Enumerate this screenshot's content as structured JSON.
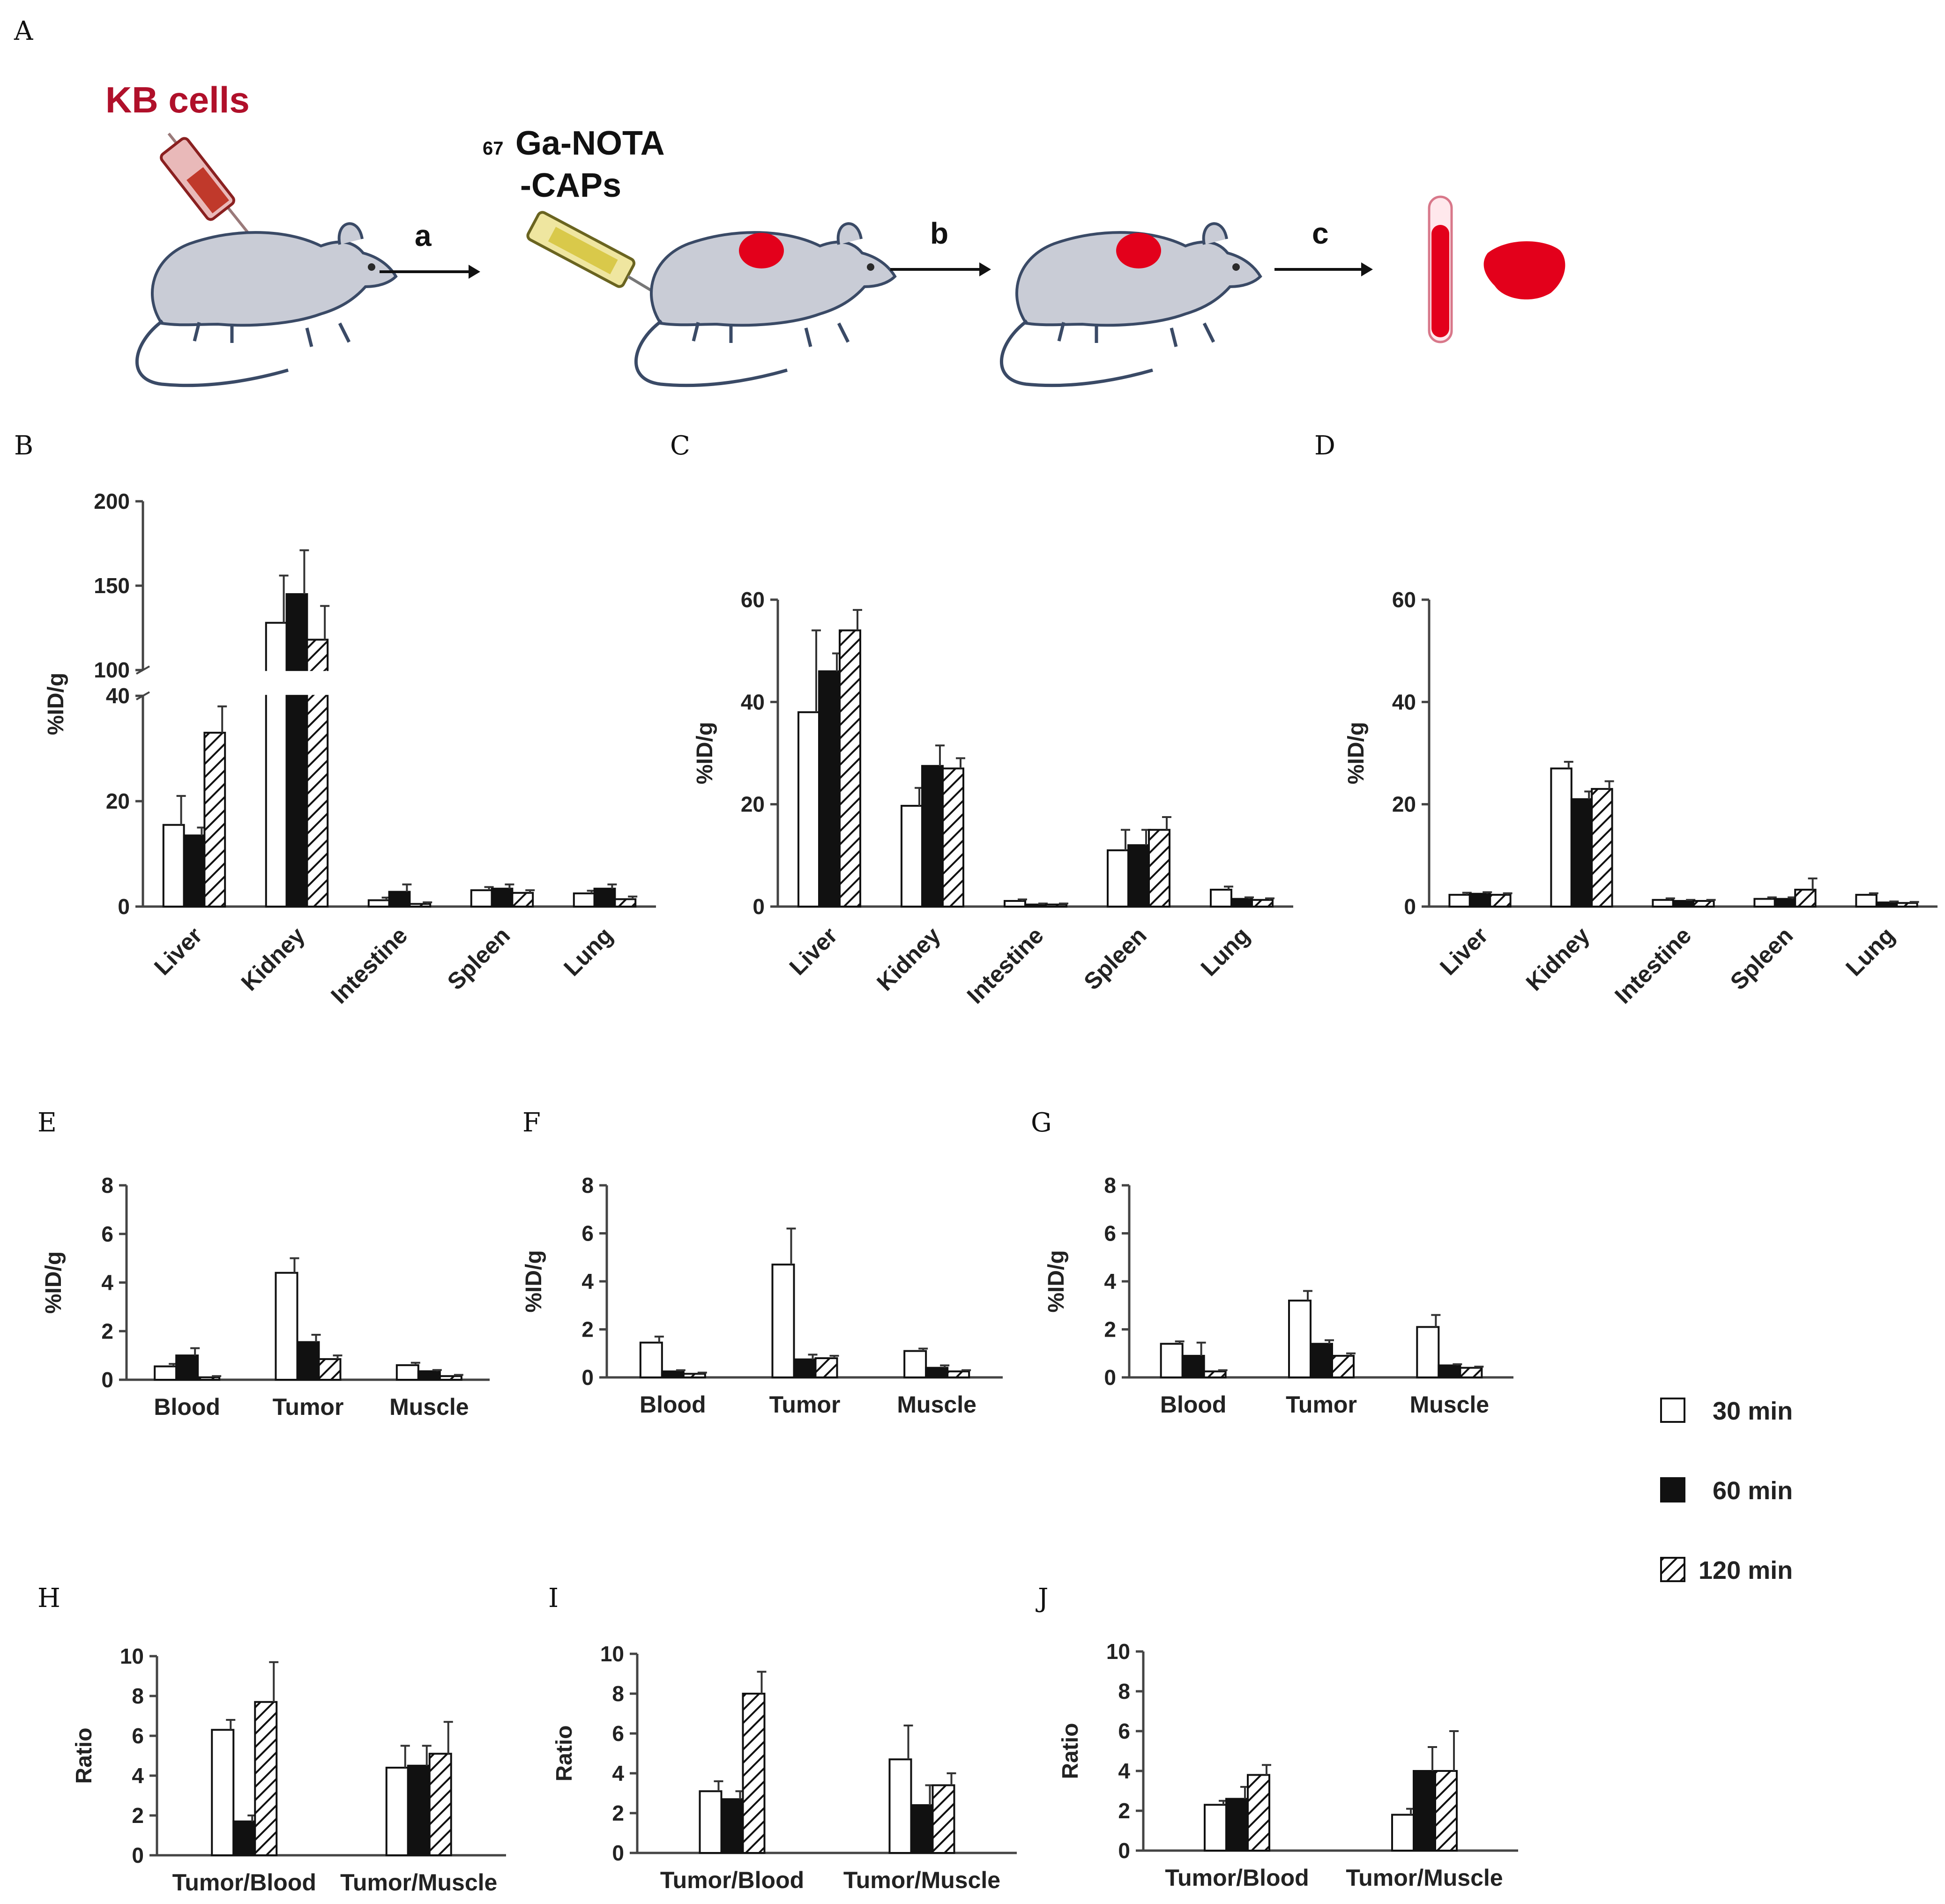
{
  "figure": {
    "panel_labels": [
      "A",
      "B",
      "C",
      "D",
      "E",
      "F",
      "G",
      "H",
      "I",
      "J"
    ],
    "scheme": {
      "cells_label": "KB cells",
      "tracer_sup": "67",
      "tracer_line1": "Ga-NOTA",
      "tracer_line2": "-CAPs",
      "steps": [
        "a",
        "b",
        "c"
      ],
      "colors": {
        "mouse": "#c9ccd6",
        "tumor": "#e3001b",
        "syringe_red": "#c0392b",
        "syringe_yellow": "#d9c94a"
      }
    },
    "legend": [
      {
        "label": "30 min",
        "fill": "white"
      },
      {
        "label": "60 min",
        "fill": "black"
      },
      {
        "label": "120 min",
        "fill": "hatch"
      }
    ]
  },
  "chart_data": [
    {
      "panel": "B",
      "type": "bar",
      "ylabel": "%ID/g",
      "ylim": [
        0,
        200
      ],
      "axis_break": [
        40,
        100
      ],
      "yticks": [
        "0",
        "20",
        "40",
        "100",
        "150",
        "200"
      ],
      "categories": [
        "Liver",
        "Kidney",
        "Intestine",
        "Spleen",
        "Lung"
      ],
      "series": [
        {
          "name": "30 min",
          "values": [
            15.5,
            128,
            1.2,
            3.1,
            2.5
          ],
          "errors": [
            5.5,
            28,
            0.5,
            0.6,
            0.5
          ]
        },
        {
          "name": "60 min",
          "values": [
            13.5,
            145,
            2.8,
            3.4,
            3.4
          ],
          "errors": [
            1.5,
            26,
            1.4,
            0.8,
            0.8
          ]
        },
        {
          "name": "120 min",
          "values": [
            33,
            118,
            0.5,
            2.6,
            1.4
          ],
          "errors": [
            5,
            20,
            0.3,
            0.5,
            0.5
          ]
        }
      ]
    },
    {
      "panel": "C",
      "type": "bar",
      "ylabel": "%ID/g",
      "ylim": [
        0,
        60
      ],
      "yticks": [
        "0",
        "20",
        "40",
        "60"
      ],
      "categories": [
        "Liver",
        "Kidney",
        "Intestine",
        "Spleen",
        "Lung"
      ],
      "series": [
        {
          "name": "30 min",
          "values": [
            38,
            19.7,
            1.1,
            11,
            3.3
          ],
          "errors": [
            16,
            3.5,
            0.3,
            4,
            0.6
          ]
        },
        {
          "name": "60 min",
          "values": [
            46,
            27.5,
            0.4,
            12,
            1.5
          ],
          "errors": [
            3.5,
            4,
            0.2,
            3,
            0.3
          ]
        },
        {
          "name": "120 min",
          "values": [
            54,
            27,
            0.4,
            15,
            1.3
          ],
          "errors": [
            4,
            2,
            0.2,
            2.5,
            0.3
          ]
        }
      ]
    },
    {
      "panel": "D",
      "type": "bar",
      "ylabel": "%ID/g",
      "ylim": [
        0,
        60
      ],
      "yticks": [
        "0",
        "20",
        "40",
        "60"
      ],
      "categories": [
        "Liver",
        "Kidney",
        "Intestine",
        "Spleen",
        "Lung"
      ],
      "series": [
        {
          "name": "30 min",
          "values": [
            2.3,
            27,
            1.3,
            1.5,
            2.3
          ],
          "errors": [
            0.4,
            1.3,
            0.3,
            0.3,
            0.3
          ]
        },
        {
          "name": "60 min",
          "values": [
            2.5,
            21,
            1.1,
            1.5,
            0.8
          ],
          "errors": [
            0.3,
            1.5,
            0.2,
            0.3,
            0.2
          ]
        },
        {
          "name": "120 min",
          "values": [
            2.3,
            23,
            1.1,
            3.3,
            0.7
          ],
          "errors": [
            0.3,
            1.5,
            0.2,
            2.2,
            0.2
          ]
        }
      ]
    },
    {
      "panel": "E",
      "type": "bar",
      "ylabel": "%ID/g",
      "ylim": [
        0,
        8
      ],
      "yticks": [
        "0",
        "2",
        "4",
        "6",
        "8"
      ],
      "categories": [
        "Blood",
        "Tumor",
        "Muscle"
      ],
      "series": [
        {
          "name": "30 min",
          "values": [
            0.55,
            4.4,
            0.6
          ],
          "errors": [
            0.1,
            0.6,
            0.1
          ]
        },
        {
          "name": "60 min",
          "values": [
            1.0,
            1.55,
            0.35
          ],
          "errors": [
            0.3,
            0.3,
            0.05
          ]
        },
        {
          "name": "120 min",
          "values": [
            0.1,
            0.85,
            0.15
          ],
          "errors": [
            0.05,
            0.15,
            0.05
          ]
        }
      ]
    },
    {
      "panel": "F",
      "type": "bar",
      "ylabel": "%ID/g",
      "ylim": [
        0,
        8
      ],
      "yticks": [
        "0",
        "2",
        "4",
        "6",
        "8"
      ],
      "categories": [
        "Blood",
        "Tumor",
        "Muscle"
      ],
      "series": [
        {
          "name": "30 min",
          "values": [
            1.45,
            4.7,
            1.1
          ],
          "errors": [
            0.25,
            1.5,
            0.1
          ]
        },
        {
          "name": "60 min",
          "values": [
            0.25,
            0.75,
            0.4
          ],
          "errors": [
            0.05,
            0.2,
            0.1
          ]
        },
        {
          "name": "120 min",
          "values": [
            0.15,
            0.8,
            0.25
          ],
          "errors": [
            0.05,
            0.1,
            0.05
          ]
        }
      ]
    },
    {
      "panel": "G",
      "type": "bar",
      "ylabel": "%ID/g",
      "ylim": [
        0,
        8
      ],
      "yticks": [
        "0",
        "2",
        "4",
        "6",
        "8"
      ],
      "categories": [
        "Blood",
        "Tumor",
        "Muscle"
      ],
      "series": [
        {
          "name": "30 min",
          "values": [
            1.4,
            3.2,
            2.1
          ],
          "errors": [
            0.1,
            0.4,
            0.5
          ]
        },
        {
          "name": "60 min",
          "values": [
            0.9,
            1.4,
            0.5
          ],
          "errors": [
            0.55,
            0.15,
            0.05
          ]
        },
        {
          "name": "120 min",
          "values": [
            0.25,
            0.9,
            0.4
          ],
          "errors": [
            0.05,
            0.1,
            0.05
          ]
        }
      ]
    },
    {
      "panel": "H",
      "type": "bar",
      "ylabel": "Ratio",
      "ylim": [
        0,
        10
      ],
      "yticks": [
        "0",
        "2",
        "4",
        "6",
        "8",
        "10"
      ],
      "categories": [
        "Tumor/Blood",
        "Tumor/Muscle"
      ],
      "series": [
        {
          "name": "30 min",
          "values": [
            6.3,
            4.4
          ],
          "errors": [
            0.5,
            1.1
          ]
        },
        {
          "name": "60 min",
          "values": [
            1.7,
            4.5
          ],
          "errors": [
            0.3,
            1.0
          ]
        },
        {
          "name": "120 min",
          "values": [
            7.7,
            5.1
          ],
          "errors": [
            2.0,
            1.6
          ]
        }
      ]
    },
    {
      "panel": "I",
      "type": "bar",
      "ylabel": "Ratio",
      "ylim": [
        0,
        10
      ],
      "yticks": [
        "0",
        "2",
        "4",
        "6",
        "8",
        "10"
      ],
      "categories": [
        "Tumor/Blood",
        "Tumor/Muscle"
      ],
      "series": [
        {
          "name": "30 min",
          "values": [
            3.1,
            4.7
          ],
          "errors": [
            0.5,
            1.7
          ]
        },
        {
          "name": "60 min",
          "values": [
            2.7,
            2.4
          ],
          "errors": [
            0.4,
            1.0
          ]
        },
        {
          "name": "120 min",
          "values": [
            8.0,
            3.4
          ],
          "errors": [
            1.1,
            0.6
          ]
        }
      ]
    },
    {
      "panel": "J",
      "type": "bar",
      "ylabel": "Ratio",
      "ylim": [
        0,
        10
      ],
      "yticks": [
        "0",
        "2",
        "4",
        "6",
        "8",
        "10"
      ],
      "categories": [
        "Tumor/Blood",
        "Tumor/Muscle"
      ],
      "series": [
        {
          "name": "30 min",
          "values": [
            2.3,
            1.8
          ],
          "errors": [
            0.2,
            0.3
          ]
        },
        {
          "name": "60 min",
          "values": [
            2.6,
            4.0
          ],
          "errors": [
            0.6,
            1.2
          ]
        },
        {
          "name": "120 min",
          "values": [
            3.8,
            4.0
          ],
          "errors": [
            0.5,
            2.0
          ]
        }
      ]
    }
  ]
}
